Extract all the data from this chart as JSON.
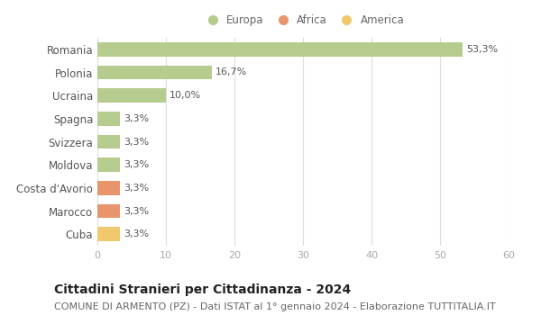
{
  "categories": [
    "Romania",
    "Polonia",
    "Ucraina",
    "Spagna",
    "Svizzera",
    "Moldova",
    "Costa d'Avorio",
    "Marocco",
    "Cuba"
  ],
  "values": [
    53.3,
    16.7,
    10.0,
    3.3,
    3.3,
    3.3,
    3.3,
    3.3,
    3.3
  ],
  "labels": [
    "53,3%",
    "16,7%",
    "10,0%",
    "3,3%",
    "3,3%",
    "3,3%",
    "3,3%",
    "3,3%",
    "3,3%"
  ],
  "bar_colors": [
    "#b5cc8e",
    "#b5cc8e",
    "#b5cc8e",
    "#b5cc8e",
    "#b5cc8e",
    "#b5cc8e",
    "#e8956d",
    "#e8956d",
    "#f0c96e"
  ],
  "legend": [
    {
      "label": "Europa",
      "color": "#b5cc8e"
    },
    {
      "label": "Africa",
      "color": "#e8956d"
    },
    {
      "label": "America",
      "color": "#f0c96e"
    }
  ],
  "xlim": [
    0,
    60
  ],
  "xticks": [
    0,
    10,
    20,
    30,
    40,
    50,
    60
  ],
  "title": "Cittadini Stranieri per Cittadinanza - 2024",
  "subtitle": "COMUNE DI ARMENTO (PZ) - Dati ISTAT al 1° gennaio 2024 - Elaborazione TUTTITALIA.IT",
  "title_fontsize": 10,
  "subtitle_fontsize": 8,
  "background_color": "#ffffff",
  "grid_color": "#dddddd",
  "bar_label_fontsize": 8,
  "tick_label_fontsize": 8,
  "ytick_label_fontsize": 8.5
}
